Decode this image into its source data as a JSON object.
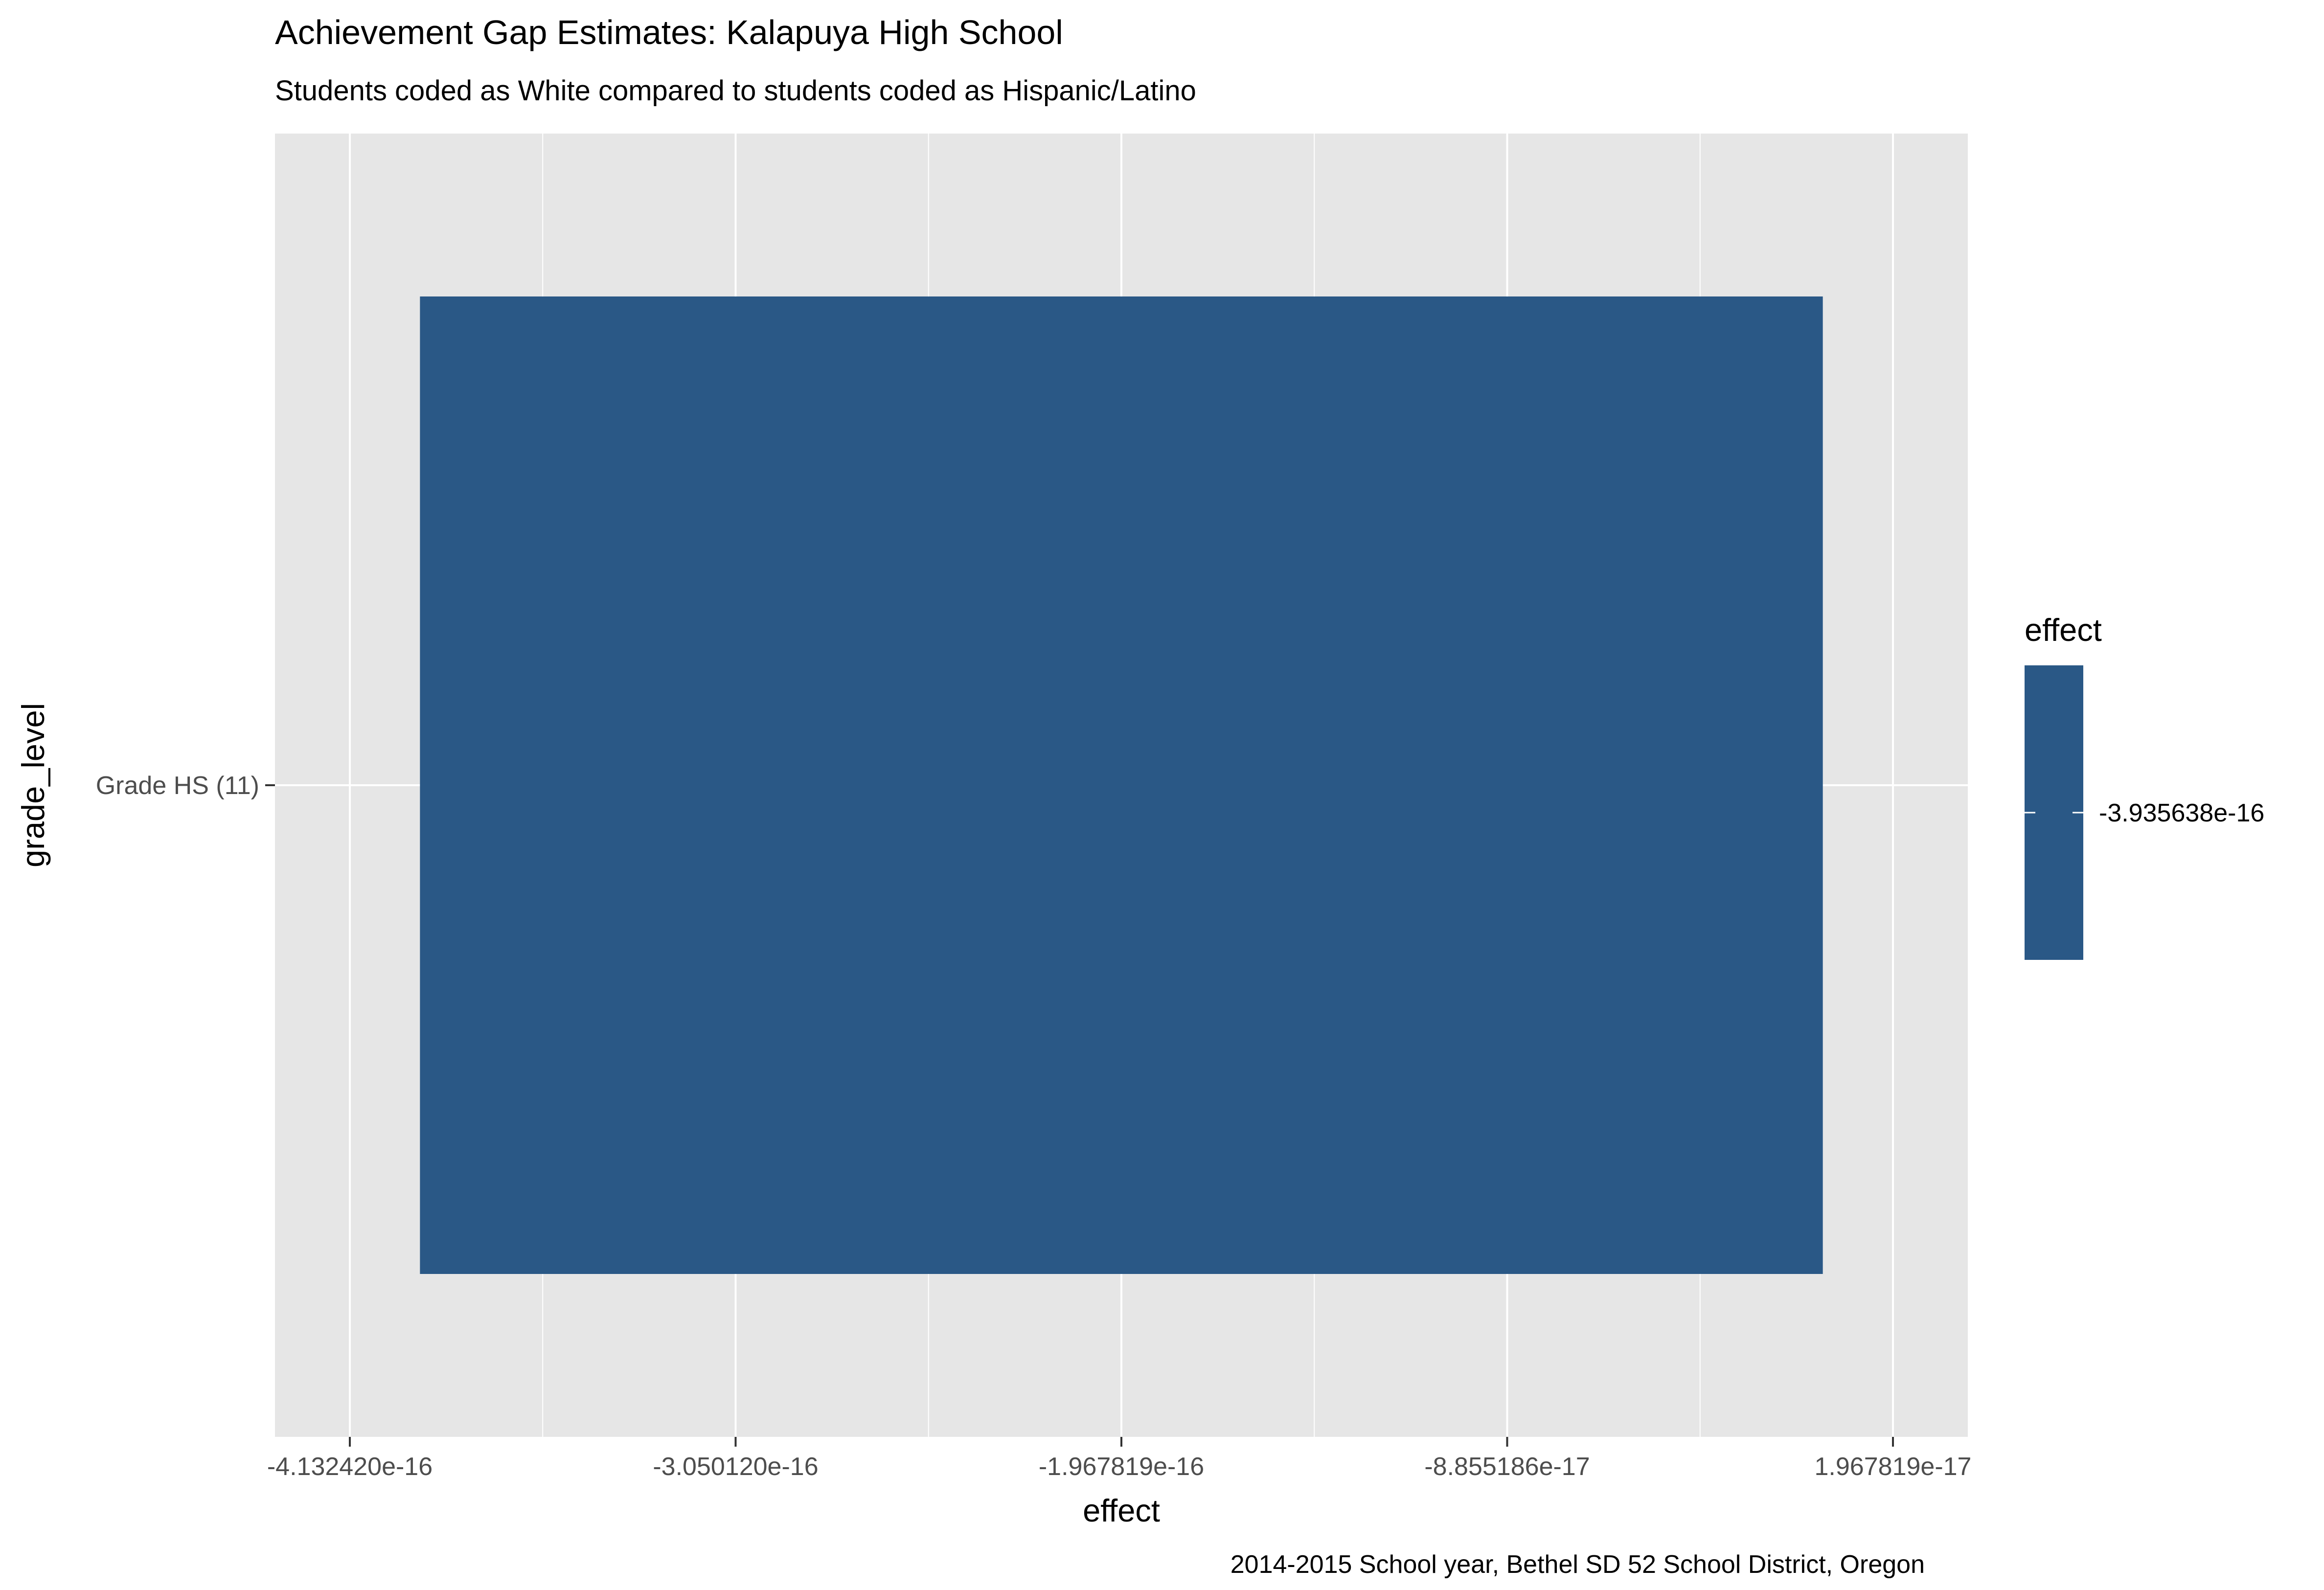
{
  "chart_data": {
    "type": "bar",
    "orientation": "horizontal",
    "title": "Achievement Gap Estimates: Kalapuya High School",
    "subtitle": "Students coded as White compared to students coded as Hispanic/Latino",
    "caption": "2014-2015 School year, Bethel SD 52 School District, Oregon",
    "xlabel": "effect",
    "ylabel": "grade_level",
    "categories": [
      "Grade HS (11)"
    ],
    "values": [
      -3.935638e-16
    ],
    "xlim": [
      -4.13242e-16,
      1.967819e-17
    ],
    "x_ticks": [
      -4.13242e-16,
      -3.05012e-16,
      -1.967819e-16,
      -8.855186e-17,
      1.967819e-17
    ],
    "x_tick_labels": [
      "-4.132420e-16",
      "-3.050120e-16",
      "-1.967819e-16",
      "-8.855186e-17",
      "1.967819e-17"
    ],
    "bar_low": -3.935638e-16,
    "bar_high": 0,
    "grid": true,
    "legend": {
      "title": "effect",
      "placement": "right",
      "entries": [
        {
          "label": "-3.935638e-16",
          "value": -3.935638e-16,
          "color": "#2a5886"
        }
      ]
    },
    "colors": {
      "bar": "#2a5886",
      "panel": "#e6e6e6",
      "grid": "#ffffff",
      "text": "#000000",
      "tick_text": "#4d4d4d"
    }
  }
}
